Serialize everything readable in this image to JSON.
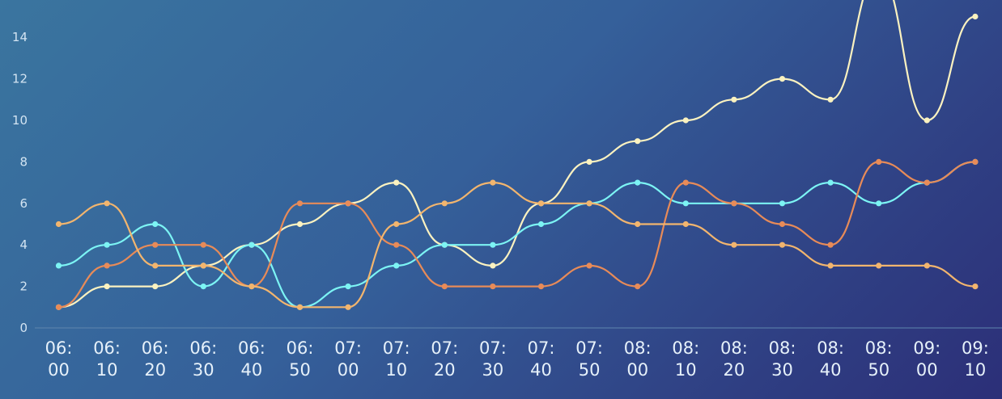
{
  "chart_data": {
    "type": "line",
    "smooth": true,
    "categories": [
      "06:00",
      "06:10",
      "06:20",
      "06:30",
      "06:40",
      "06:50",
      "07:00",
      "07:10",
      "07:20",
      "07:30",
      "07:40",
      "07:50",
      "08:00",
      "08:10",
      "08:20",
      "08:30",
      "08:40",
      "08:50",
      "09:00",
      "09:10"
    ],
    "y_ticks": [
      0,
      2,
      4,
      6,
      8,
      10,
      12,
      14
    ],
    "ylim": [
      0,
      16
    ],
    "grid": false,
    "legend": "none",
    "series": [
      {
        "color": "#fbf2c0",
        "values": [
          1,
          2,
          2,
          3,
          4,
          5,
          6,
          7,
          4,
          3,
          6,
          8,
          9,
          10,
          11,
          12,
          11,
          17,
          10,
          15
        ]
      },
      {
        "color": "#7cf4f4",
        "values": [
          3,
          4,
          5,
          2,
          4,
          1,
          2,
          3,
          4,
          4,
          5,
          6,
          7,
          6,
          6,
          6,
          7,
          6,
          7,
          8
        ]
      },
      {
        "color": "#e88b58",
        "values": [
          1,
          3,
          4,
          4,
          2,
          6,
          6,
          4,
          2,
          2,
          2,
          3,
          2,
          7,
          6,
          5,
          4,
          8,
          7,
          8
        ]
      },
      {
        "color": "#f2b56e",
        "values": [
          5,
          6,
          3,
          3,
          2,
          1,
          1,
          5,
          6,
          7,
          6,
          6,
          5,
          5,
          4,
          4,
          3,
          3,
          3,
          2
        ]
      }
    ]
  }
}
